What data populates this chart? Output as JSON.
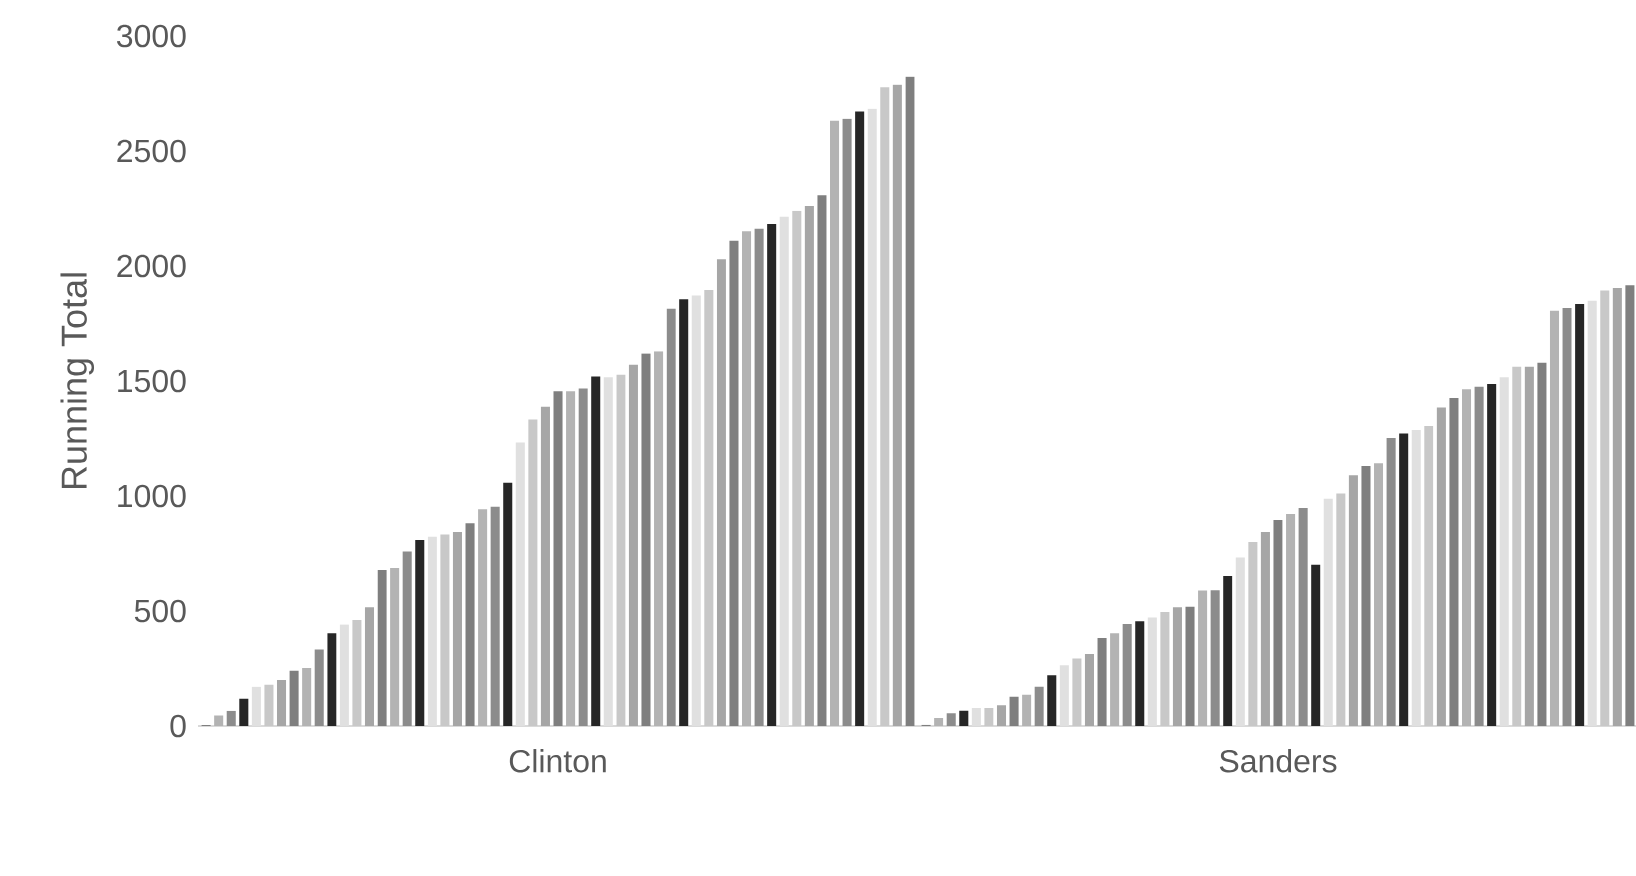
{
  "chart_data": {
    "type": "bar",
    "ylabel": "Running Total",
    "categories": [
      "Clinton",
      "Sanders"
    ],
    "ylim": [
      0,
      3000
    ],
    "yticks": [
      0,
      500,
      1000,
      1500,
      2000,
      2500,
      3000
    ],
    "series": [
      {
        "color": "#7f7f7f",
        "values": [
          4,
          5
        ]
      },
      {
        "color": "#b3b3b3",
        "values": [
          46,
          35
        ]
      },
      {
        "color": "#8c8c8c",
        "values": [
          66,
          55
        ]
      },
      {
        "color": "#262626",
        "values": [
          119,
          66
        ]
      },
      {
        "color": "#e0e0e0",
        "values": [
          171,
          78
        ]
      },
      {
        "color": "#c8c8c8",
        "values": [
          180,
          78
        ]
      },
      {
        "color": "#a6a6a6",
        "values": [
          200,
          90
        ]
      },
      {
        "color": "#7f7f7f",
        "values": [
          241,
          127
        ]
      },
      {
        "color": "#b3b3b3",
        "values": [
          252,
          136
        ]
      },
      {
        "color": "#8c8c8c",
        "values": [
          333,
          171
        ]
      },
      {
        "color": "#262626",
        "values": [
          403,
          220
        ]
      },
      {
        "color": "#e0e0e0",
        "values": [
          441,
          264
        ]
      },
      {
        "color": "#c8c8c8",
        "values": [
          461,
          293
        ]
      },
      {
        "color": "#a6a6a6",
        "values": [
          516,
          313
        ]
      },
      {
        "color": "#7f7f7f",
        "values": [
          678,
          383
        ]
      },
      {
        "color": "#b3b3b3",
        "values": [
          687,
          403
        ]
      },
      {
        "color": "#8c8c8c",
        "values": [
          759,
          443
        ]
      },
      {
        "color": "#262626",
        "values": [
          809,
          455
        ]
      },
      {
        "color": "#e0e0e0",
        "values": [
          823,
          472
        ]
      },
      {
        "color": "#c8c8c8",
        "values": [
          832,
          496
        ]
      },
      {
        "color": "#a6a6a6",
        "values": [
          843,
          516
        ]
      },
      {
        "color": "#7f7f7f",
        "values": [
          881,
          518
        ]
      },
      {
        "color": "#b3b3b3",
        "values": [
          942,
          589
        ]
      },
      {
        "color": "#8c8c8c",
        "values": [
          953,
          590
        ]
      },
      {
        "color": "#262626",
        "values": [
          1058,
          652
        ]
      },
      {
        "color": "#e0e0e0",
        "values": [
          1232,
          733
        ]
      },
      {
        "color": "#c8c8c8",
        "values": [
          1333,
          800
        ]
      },
      {
        "color": "#a6a6a6",
        "values": [
          1388,
          843
        ]
      },
      {
        "color": "#7f7f7f",
        "values": [
          1455,
          896
        ]
      },
      {
        "color": "#b3b3b3",
        "values": [
          1455,
          922
        ]
      },
      {
        "color": "#8c8c8c",
        "values": [
          1467,
          948
        ]
      },
      {
        "color": "#262626",
        "values": [
          1519,
          701
        ]
      },
      {
        "color": "#e0e0e0",
        "values": [
          1516,
          988
        ]
      },
      {
        "color": "#c8c8c8",
        "values": [
          1527,
          1011
        ]
      },
      {
        "color": "#a6a6a6",
        "values": [
          1571,
          1090
        ]
      },
      {
        "color": "#7f7f7f",
        "values": [
          1620,
          1130
        ]
      },
      {
        "color": "#b3b3b3",
        "values": [
          1629,
          1142
        ]
      },
      {
        "color": "#8c8c8c",
        "values": [
          1814,
          1252
        ]
      },
      {
        "color": "#262626",
        "values": [
          1855,
          1272
        ]
      },
      {
        "color": "#e0e0e0",
        "values": [
          1872,
          1287
        ]
      },
      {
        "color": "#c8c8c8",
        "values": [
          1896,
          1304
        ]
      },
      {
        "color": "#a6a6a6",
        "values": [
          2029,
          1385
        ]
      },
      {
        "color": "#7f7f7f",
        "values": [
          2110,
          1426
        ]
      },
      {
        "color": "#b3b3b3",
        "values": [
          2151,
          1464
        ]
      },
      {
        "color": "#8c8c8c",
        "values": [
          2162,
          1475
        ]
      },
      {
        "color": "#262626",
        "values": [
          2183,
          1487
        ]
      },
      {
        "color": "#e0e0e0",
        "values": [
          2214,
          1516
        ]
      },
      {
        "color": "#c8c8c8",
        "values": [
          2240,
          1562
        ]
      },
      {
        "color": "#a6a6a6",
        "values": [
          2261,
          1562
        ]
      },
      {
        "color": "#7f7f7f",
        "values": [
          2307,
          1579
        ]
      },
      {
        "color": "#b3b3b3",
        "values": [
          2632,
          1805
        ]
      },
      {
        "color": "#8c8c8c",
        "values": [
          2640,
          1817
        ]
      },
      {
        "color": "#262626",
        "values": [
          2672,
          1835
        ]
      },
      {
        "color": "#e0e0e0",
        "values": [
          2684,
          1849
        ]
      },
      {
        "color": "#c8c8c8",
        "values": [
          2777,
          1893
        ]
      },
      {
        "color": "#a6a6a6",
        "values": [
          2788,
          1904
        ]
      },
      {
        "color": "#7f7f7f",
        "values": [
          2823,
          1916
        ]
      }
    ]
  }
}
